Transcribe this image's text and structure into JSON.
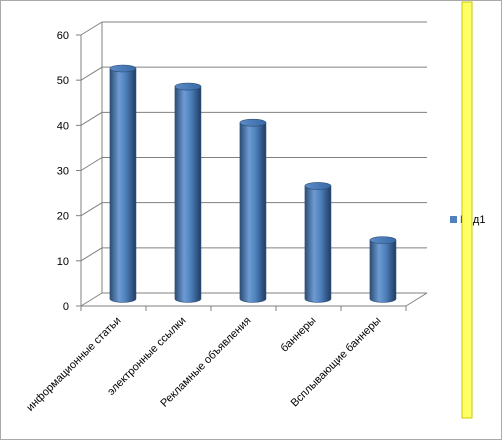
{
  "chart_data": {
    "type": "bar",
    "style": "3d-cylinder",
    "categories": [
      "информационные статьи",
      "электронные ссылки",
      "Рекламные объявления",
      "баннеры",
      "Всплывающие баннеры"
    ],
    "series": [
      {
        "name": "Ряд1",
        "values": [
          51,
          47,
          39,
          25,
          13
        ],
        "color": "#4f81bd"
      }
    ],
    "yticks": [
      0,
      10,
      20,
      30,
      40,
      50,
      60
    ],
    "ylim": [
      0,
      60
    ],
    "grid": true,
    "legend": "right",
    "title": "",
    "xlabel": "",
    "ylabel": ""
  },
  "colors": {
    "bar_fill": "#4f81bd",
    "bar_dark": "#2c4d75",
    "bar_light": "#8fb2dc",
    "grid": "#808080",
    "side_accent": "#ffff66",
    "side_accent_border": "#c8c800"
  }
}
